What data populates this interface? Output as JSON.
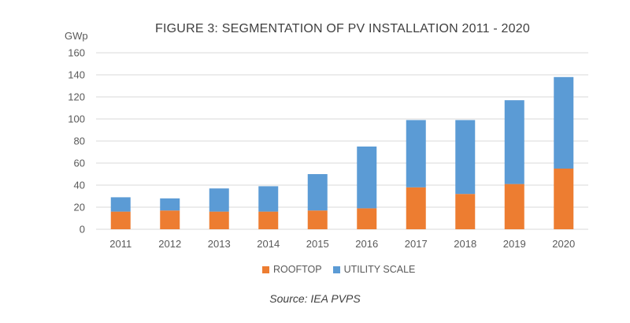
{
  "chart_data": {
    "type": "bar",
    "stacked": true,
    "title": "FIGURE 3: SEGMENTATION OF PV INSTALLATION 2011 - 2020",
    "ylabel": "GWp",
    "xlabel": "",
    "ylim": [
      0,
      160
    ],
    "yticks": [
      0,
      20,
      40,
      60,
      80,
      100,
      120,
      140,
      160
    ],
    "grid": true,
    "legend_position": "bottom",
    "categories": [
      "2011",
      "2012",
      "2013",
      "2014",
      "2015",
      "2016",
      "2017",
      "2018",
      "2019",
      "2020"
    ],
    "series": [
      {
        "name": "ROOFTOP",
        "color": "#ED7D31",
        "values": [
          16,
          17,
          16,
          16,
          17,
          19,
          38,
          32,
          41,
          55
        ]
      },
      {
        "name": "UTILITY SCALE",
        "color": "#5B9BD5",
        "values": [
          13,
          11,
          21,
          23,
          33,
          56,
          61,
          67,
          76,
          83
        ]
      }
    ],
    "source": "Source: IEA PVPS"
  }
}
